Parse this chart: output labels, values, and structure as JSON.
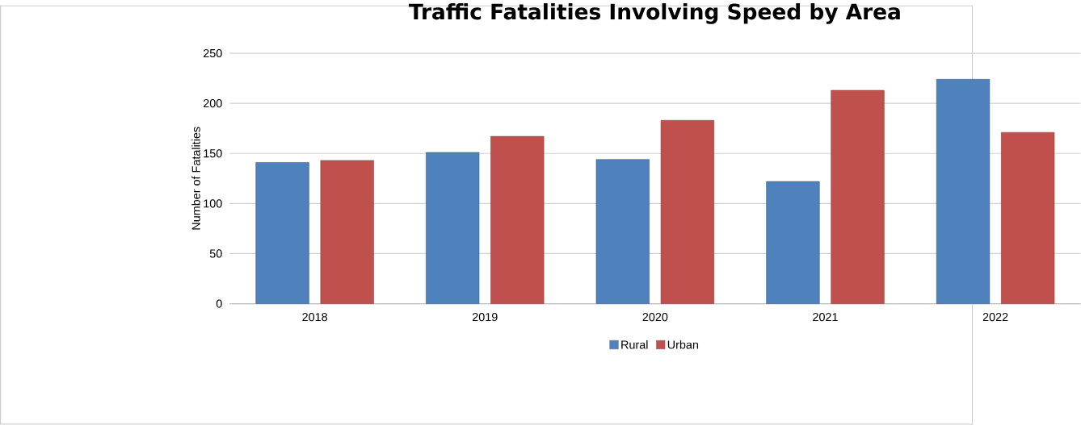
{
  "chart_data": {
    "type": "bar",
    "title": "Traffic Fatalities Involving Speed by Area",
    "ylabel": "Number of Fatalities",
    "categories": [
      "2018",
      "2019",
      "2020",
      "2021",
      "2022"
    ],
    "series": [
      {
        "name": "Rural",
        "color": "#4f81bd",
        "values": [
          141,
          151,
          144,
          122,
          224
        ]
      },
      {
        "name": "Urban",
        "color": "#c0504d",
        "values": [
          143,
          167,
          183,
          213,
          171
        ]
      }
    ],
    "ylim": [
      0,
      250
    ],
    "yticks": [
      0,
      50,
      100,
      150,
      200,
      250
    ],
    "grid": "y",
    "legend": "bottom"
  }
}
